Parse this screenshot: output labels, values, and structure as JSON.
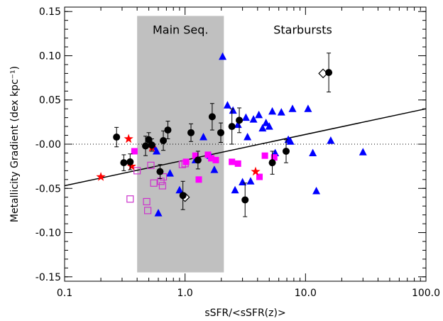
{
  "chart_data": {
    "type": "scatter",
    "xlabel": "sSFR/<sSFR(z)>",
    "ylabel": "Metallicity Gradient (dex kpc⁻¹)",
    "xscale": "log",
    "xlim": [
      0.1,
      100.0
    ],
    "ylim": [
      -0.155,
      0.155
    ],
    "x_ticks": [
      0.1,
      1.0,
      10.0,
      100.0
    ],
    "x_tick_labels": [
      "0.1",
      "1.0",
      "10.0",
      "100.0"
    ],
    "y_ticks": [
      -0.15,
      -0.1,
      -0.05,
      0.0,
      0.05,
      0.1,
      0.15
    ],
    "y_tick_labels": [
      "-0.15",
      "-0.10",
      "-0.05",
      "-0.00",
      "0.05",
      "0.10",
      "0.15"
    ],
    "colors": {
      "triangle": "#0000ff",
      "filled_square": "#ff00ff",
      "open_square": "#cc33cc",
      "star": "#ff0000",
      "circle": "#000000",
      "region": "#c0c0c0"
    },
    "regions": [
      {
        "label": "Main Seq.",
        "x_range": [
          0.4,
          2.1
        ],
        "y_range": [
          -0.145,
          0.145
        ]
      },
      {
        "label": "Starbursts"
      }
    ],
    "fit_line": {
      "style": "solid",
      "points": [
        [
          0.1,
          -0.047
        ],
        [
          100.0,
          0.04
        ]
      ]
    },
    "zero_line": {
      "style": "dotted",
      "y": 0.0
    },
    "series": [
      {
        "marker": "circle",
        "color": "#000000",
        "points": [
          {
            "x": 0.27,
            "y": 0.008,
            "err": 0.011
          },
          {
            "x": 0.31,
            "y": -0.021,
            "err": 0.009
          },
          {
            "x": 0.35,
            "y": -0.02,
            "err": 0.009
          },
          {
            "x": 0.47,
            "y": -0.002,
            "err": 0.011
          },
          {
            "x": 0.5,
            "y": 0.005,
            "err": 0.008
          },
          {
            "x": 0.53,
            "y": -0.001,
            "err": 0.007
          },
          {
            "x": 0.62,
            "y": -0.031,
            "err": 0.008
          },
          {
            "x": 0.66,
            "y": 0.004,
            "err": 0.011
          },
          {
            "x": 0.72,
            "y": 0.016,
            "err": 0.01
          },
          {
            "x": 0.96,
            "y": -0.058,
            "err": 0.016
          },
          {
            "x": 1.12,
            "y": 0.013,
            "err": 0.01
          },
          {
            "x": 1.28,
            "y": -0.018,
            "err": 0.01
          },
          {
            "x": 1.68,
            "y": 0.031,
            "err": 0.015
          },
          {
            "x": 1.98,
            "y": 0.013,
            "err": 0.011
          },
          {
            "x": 2.45,
            "y": 0.02,
            "err": 0.02
          },
          {
            "x": 2.82,
            "y": 0.027,
            "err": 0.014
          },
          {
            "x": 3.15,
            "y": -0.063,
            "err": 0.019
          },
          {
            "x": 5.3,
            "y": -0.021,
            "err": 0.013
          },
          {
            "x": 6.9,
            "y": -0.008,
            "err": 0.013
          },
          {
            "x": 15.6,
            "y": 0.081,
            "err": 0.022
          }
        ]
      },
      {
        "marker": "triangle",
        "color": "#0000ff",
        "points": [
          {
            "x": 0.55,
            "y": -0.003
          },
          {
            "x": 0.58,
            "y": -0.008
          },
          {
            "x": 0.6,
            "y": -0.078
          },
          {
            "x": 0.75,
            "y": -0.033
          },
          {
            "x": 0.9,
            "y": -0.052
          },
          {
            "x": 1.22,
            "y": -0.018
          },
          {
            "x": 1.42,
            "y": 0.008
          },
          {
            "x": 1.62,
            "y": -0.013
          },
          {
            "x": 1.75,
            "y": -0.029
          },
          {
            "x": 2.05,
            "y": 0.099
          },
          {
            "x": 2.25,
            "y": 0.044
          },
          {
            "x": 2.5,
            "y": 0.038
          },
          {
            "x": 2.6,
            "y": -0.052
          },
          {
            "x": 2.75,
            "y": 0.022
          },
          {
            "x": 3.0,
            "y": -0.043
          },
          {
            "x": 3.2,
            "y": 0.03
          },
          {
            "x": 3.3,
            "y": 0.008
          },
          {
            "x": 3.5,
            "y": -0.042
          },
          {
            "x": 3.7,
            "y": 0.028
          },
          {
            "x": 4.1,
            "y": 0.033
          },
          {
            "x": 4.4,
            "y": 0.018
          },
          {
            "x": 4.7,
            "y": 0.024
          },
          {
            "x": 5.0,
            "y": 0.02
          },
          {
            "x": 5.3,
            "y": 0.037
          },
          {
            "x": 5.6,
            "y": -0.01
          },
          {
            "x": 6.3,
            "y": 0.036
          },
          {
            "x": 7.2,
            "y": 0.005
          },
          {
            "x": 7.5,
            "y": 0.003
          },
          {
            "x": 7.8,
            "y": 0.04
          },
          {
            "x": 10.5,
            "y": 0.04
          },
          {
            "x": 11.5,
            "y": -0.01
          },
          {
            "x": 12.3,
            "y": -0.053
          },
          {
            "x": 16.2,
            "y": 0.004
          },
          {
            "x": 30.0,
            "y": -0.009
          }
        ]
      },
      {
        "marker": "filled_square",
        "color": "#ff00ff",
        "points": [
          {
            "x": 0.38,
            "y": -0.008
          },
          {
            "x": 1.02,
            "y": -0.02
          },
          {
            "x": 1.22,
            "y": -0.013
          },
          {
            "x": 1.3,
            "y": -0.04
          },
          {
            "x": 1.55,
            "y": -0.012
          },
          {
            "x": 1.65,
            "y": -0.016
          },
          {
            "x": 1.8,
            "y": -0.018
          },
          {
            "x": 2.45,
            "y": -0.02
          },
          {
            "x": 2.75,
            "y": -0.022
          },
          {
            "x": 4.15,
            "y": -0.037
          },
          {
            "x": 4.6,
            "y": -0.013
          },
          {
            "x": 5.5,
            "y": -0.015
          }
        ]
      },
      {
        "marker": "open_square",
        "color": "#cc33cc",
        "points": [
          {
            "x": 0.35,
            "y": -0.062
          },
          {
            "x": 0.4,
            "y": -0.03
          },
          {
            "x": 0.48,
            "y": -0.065
          },
          {
            "x": 0.49,
            "y": -0.075
          },
          {
            "x": 0.52,
            "y": -0.024
          },
          {
            "x": 0.55,
            "y": -0.044
          },
          {
            "x": 0.63,
            "y": -0.042
          },
          {
            "x": 0.65,
            "y": -0.047
          },
          {
            "x": 0.66,
            "y": -0.037
          },
          {
            "x": 0.95,
            "y": -0.023
          },
          {
            "x": 1.0,
            "y": -0.022
          }
        ]
      },
      {
        "marker": "star",
        "color": "#ff0000",
        "points": [
          {
            "x": 0.2,
            "y": -0.037
          },
          {
            "x": 0.34,
            "y": 0.006
          },
          {
            "x": 0.36,
            "y": -0.025
          },
          {
            "x": 0.53,
            "y": -0.004
          },
          {
            "x": 3.85,
            "y": -0.031
          }
        ]
      },
      {
        "marker": "diamond_open",
        "color": "#000000",
        "points": [
          {
            "x": 1.0,
            "y": -0.06
          },
          {
            "x": 14.0,
            "y": 0.08
          }
        ]
      }
    ]
  }
}
